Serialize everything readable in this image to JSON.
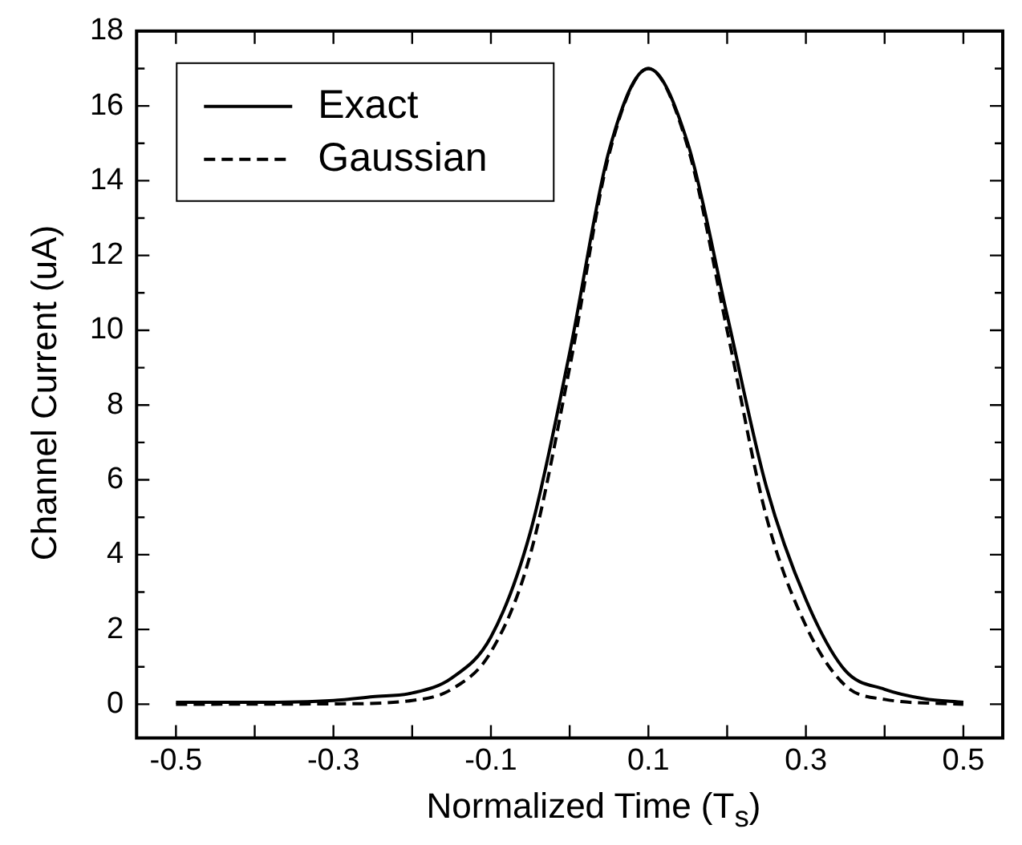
{
  "chart_data": {
    "type": "line",
    "xlabel": "Normalized Time (T$_{s}$)",
    "ylabel": "Channel Current (uA)",
    "xlim": [
      -0.55,
      0.55
    ],
    "ylim": [
      -0.9,
      18
    ],
    "xticks": [
      -0.5,
      {
        "value": -0.4,
        "label": null
      },
      -0.3,
      {
        "value": -0.2,
        "label": null
      },
      -0.1,
      {
        "value": 0,
        "label": null
      },
      0.1,
      {
        "value": 0.2,
        "label": null
      },
      0.3,
      {
        "value": 0.4,
        "label": null
      },
      0.5
    ],
    "yticks": [
      0,
      {
        "value": 1,
        "label": null
      },
      2,
      {
        "value": 3,
        "label": null
      },
      4,
      {
        "value": 5,
        "label": null
      },
      6,
      {
        "value": 7,
        "label": null
      },
      8,
      {
        "value": 9,
        "label": null
      },
      10,
      {
        "value": 11,
        "label": null
      },
      12,
      {
        "value": 13,
        "label": null
      },
      14,
      {
        "value": 15,
        "label": null
      },
      16,
      {
        "value": 17,
        "label": null
      },
      18
    ],
    "grid": false,
    "legend": "top left",
    "marker": "none",
    "series": [
      {
        "name": "Exact",
        "color": "#000000",
        "line_style": "solid",
        "x": [
          -0.5,
          -0.4,
          -0.3,
          -0.25,
          -0.2,
          -0.15,
          -0.1,
          -0.05,
          0,
          0.05,
          0.1,
          0.15,
          0.2,
          0.25,
          0.3,
          0.35,
          0.4,
          0.45,
          0.5
        ],
        "values": [
          0.05,
          0.05,
          0.1,
          0.2,
          0.3,
          0.7,
          1.8,
          4.6,
          9.4,
          14.8,
          17.0,
          15.0,
          10.4,
          5.8,
          2.8,
          0.9,
          0.4,
          0.15,
          0.05
        ]
      },
      {
        "name": "Gaussian",
        "color": "#000000",
        "line_style": "dashed",
        "x": [
          -0.5,
          -0.3,
          -0.2,
          -0.15,
          -0.1,
          -0.05,
          0,
          0.05,
          0.1,
          0.15,
          0.2,
          0.25,
          0.3,
          0.35,
          0.4,
          0.5
        ],
        "values": [
          0,
          0.01,
          0.1,
          0.4,
          1.4,
          4.0,
          9.0,
          14.7,
          17.0,
          14.9,
          10.0,
          5.0,
          2.1,
          0.5,
          0.13,
          0
        ]
      }
    ]
  }
}
